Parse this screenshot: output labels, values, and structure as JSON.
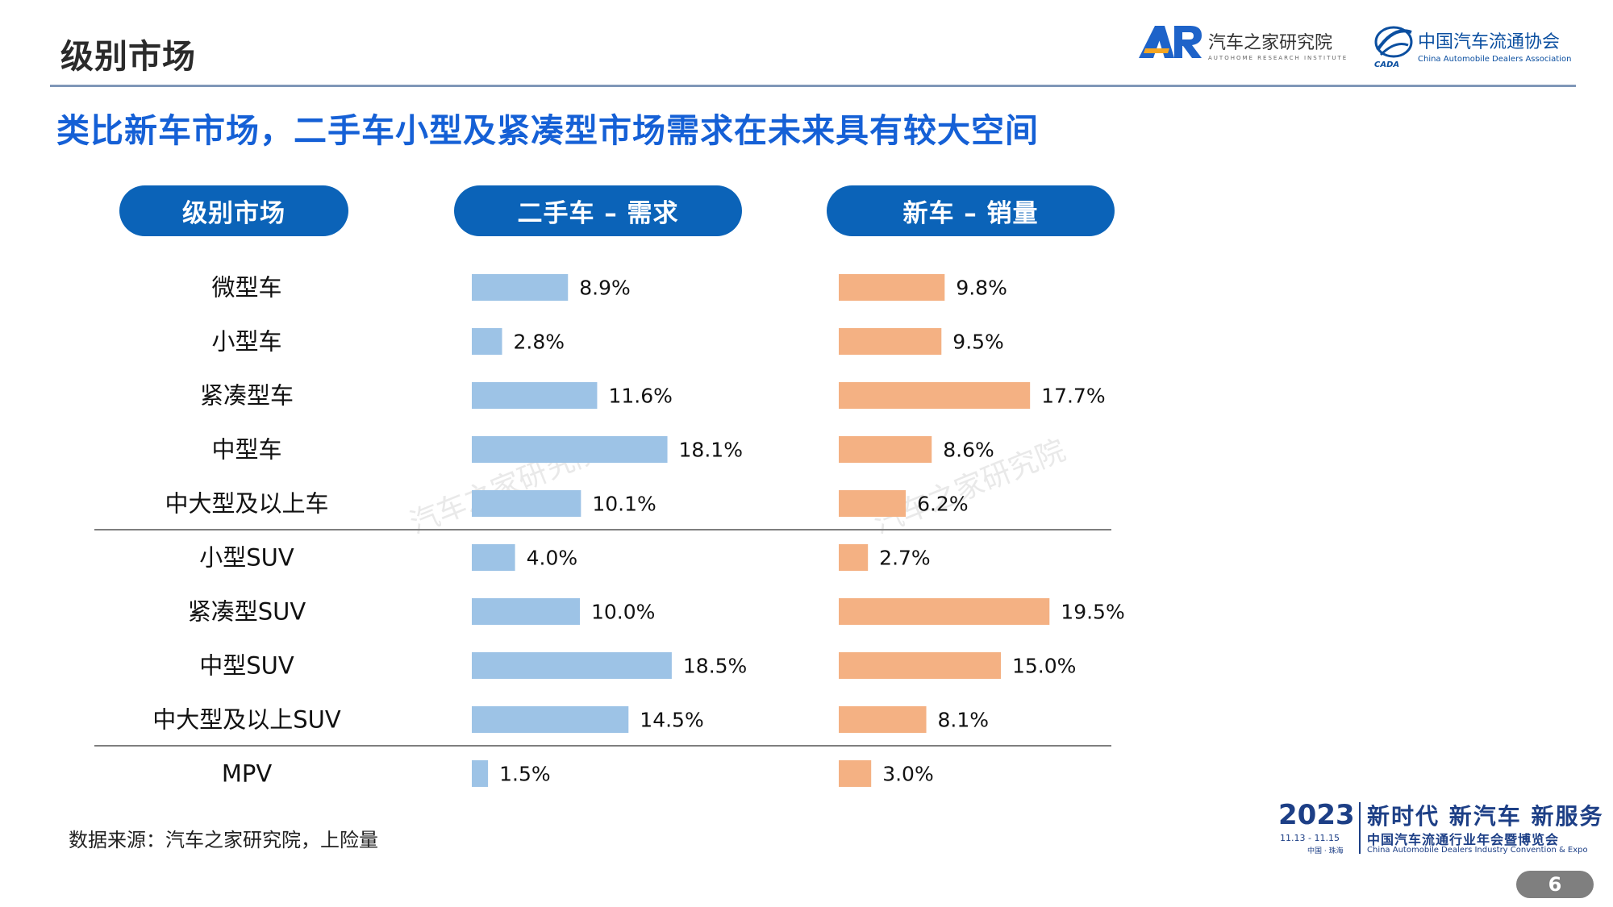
{
  "header": {
    "title": "级别市场",
    "logo_ar": {
      "name": "汽车之家研究院",
      "sub": "AUTOHOME RESEARCH INSTITUTE",
      "mark": "AR"
    },
    "logo_cada": {
      "name": "中国汽车流通协会",
      "sub": "China Automobile Dealers Association",
      "mark": "CADA"
    }
  },
  "headline": "类比新车市场，二手车小型及紧凑型市场需求在未来具有较大空间",
  "columns": {
    "level": "级别市场",
    "used": "二手车 – 需求",
    "new": "新车 – 销量"
  },
  "chart_data": {
    "type": "bar",
    "orientation": "horizontal",
    "categories": [
      "微型车",
      "小型车",
      "紧凑型车",
      "中型车",
      "中大型及以上车",
      "小型SUV",
      "紧凑型SUV",
      "中型SUV",
      "中大型及以上SUV",
      "MPV"
    ],
    "series": [
      {
        "name": "二手车 – 需求",
        "color": "#9dc3e6",
        "values": [
          8.9,
          2.8,
          11.6,
          18.1,
          10.1,
          4.0,
          10.0,
          18.5,
          14.5,
          1.5
        ],
        "labels": [
          "8.9%",
          "2.8%",
          "11.6%",
          "18.1%",
          "10.1%",
          "4.0%",
          "10.0%",
          "18.5%",
          "14.5%",
          "1.5%"
        ]
      },
      {
        "name": "新车 – 销量",
        "color": "#f4b183",
        "values": [
          9.8,
          9.5,
          17.7,
          8.6,
          6.2,
          2.7,
          19.5,
          15.0,
          8.1,
          3.0
        ],
        "labels": [
          "9.8%",
          "9.5%",
          "17.7%",
          "8.6%",
          "6.2%",
          "2.7%",
          "19.5%",
          "15.0%",
          "8.1%",
          "3.0%"
        ]
      }
    ],
    "unit": "%",
    "group_dividers_after": [
      4,
      8
    ]
  },
  "watermark": "汽车之家研究院",
  "source": "数据来源：汽车之家研究院，上险量",
  "event": {
    "year": "2023",
    "dates": "11.13 - 11.15",
    "city": "中国 · 珠海",
    "slogan": "新时代 新汽车 新服务",
    "name": "中国汽车流通行业年会暨博览会",
    "en": "China Automobile Dealers Industry Convention & Expo"
  },
  "page_number": "6"
}
